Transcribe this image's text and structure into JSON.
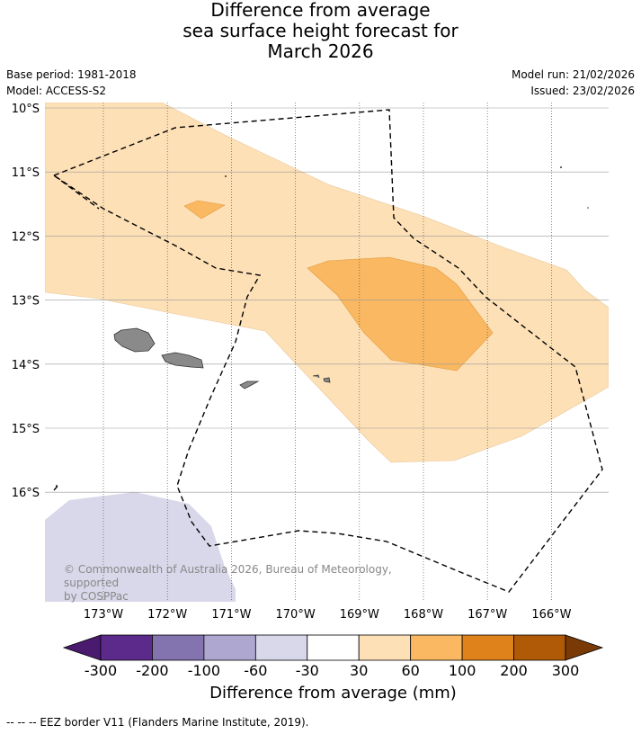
{
  "title": {
    "line1": "Difference from average",
    "line2": "sea surface height forecast for",
    "line3": "March 2026"
  },
  "meta": {
    "base_period": "Base period: 1981-2018",
    "model": "Model: ACCESS-S2",
    "model_run": "Model run: 21/02/2026",
    "issued": "Issued: 23/02/2026"
  },
  "map": {
    "lon_labels": [
      "173°W",
      "172°W",
      "171°W",
      "170°W",
      "169°W",
      "168°W",
      "167°W",
      "166°W"
    ],
    "lat_labels": [
      "10°S",
      "11°S",
      "12°S",
      "13°S",
      "14°S",
      "15°S",
      "16°S"
    ],
    "lon_values": [
      -173,
      -172,
      -171,
      -170,
      -169,
      -168,
      -167,
      -166
    ],
    "lat_values": [
      -10,
      -11,
      -12,
      -13,
      -14,
      -15,
      -16
    ],
    "copyright_line1": "© Commonwealth of Australia 2026, Bureau of Meteorology, supported",
    "copyright_line2": "by COSPPac"
  },
  "colorbar": {
    "title": "Difference from average (mm)",
    "ticks": [
      "-300",
      "-200",
      "-100",
      "-60",
      "-30",
      "30",
      "60",
      "100",
      "200",
      "300"
    ],
    "colors": [
      "#4a1a6e",
      "#5c2a8a",
      "#8373ae",
      "#aea7d0",
      "#d8d8ea",
      "#ffffff",
      "#fde0b6",
      "#f9b861",
      "#e0821c",
      "#b05a08",
      "#7a3a05"
    ]
  },
  "legend": {
    "eez": "--  --  -- EEZ border V11 (Flanders Marine Institute, 2019)."
  }
}
